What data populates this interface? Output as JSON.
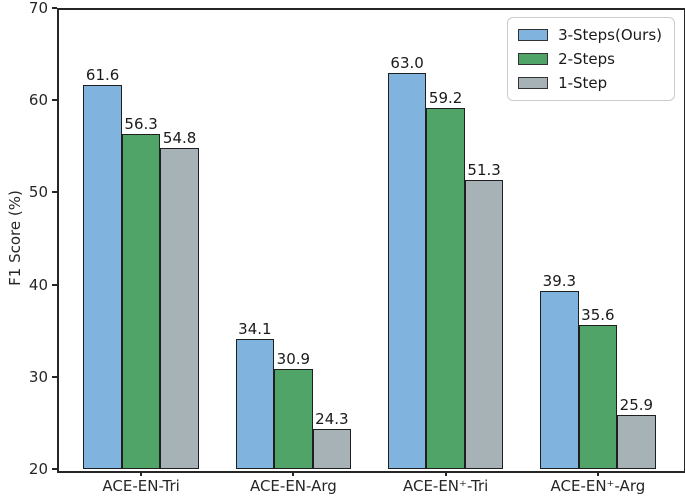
{
  "figure": {
    "ylabel": "F1 Score (%)"
  },
  "chart_data": {
    "type": "bar",
    "title": "",
    "xlabel": "",
    "ylabel": "F1 Score (%)",
    "categories": [
      "ACE-EN-Tri",
      "ACE-EN-Arg",
      "ACE-EN⁺-Tri",
      "ACE-EN⁺-Arg"
    ],
    "series": [
      {
        "name": "3-Steps(Ours)",
        "color": "#80B4DE",
        "values": [
          61.6,
          34.1,
          63.0,
          39.3
        ]
      },
      {
        "name": "2-Steps",
        "color": "#50A468",
        "values": [
          56.3,
          30.9,
          59.2,
          35.6
        ]
      },
      {
        "name": "1-Step",
        "color": "#A6B2B6",
        "values": [
          54.8,
          24.3,
          51.3,
          25.9
        ]
      }
    ],
    "ylim": [
      20,
      70
    ],
    "yticks": [
      20,
      30,
      40,
      50,
      60,
      70
    ],
    "grid": false,
    "legend_position": "upper right",
    "value_labels": true,
    "bar_edge_color": "#1f1f1f",
    "spine_color": "#262626"
  }
}
